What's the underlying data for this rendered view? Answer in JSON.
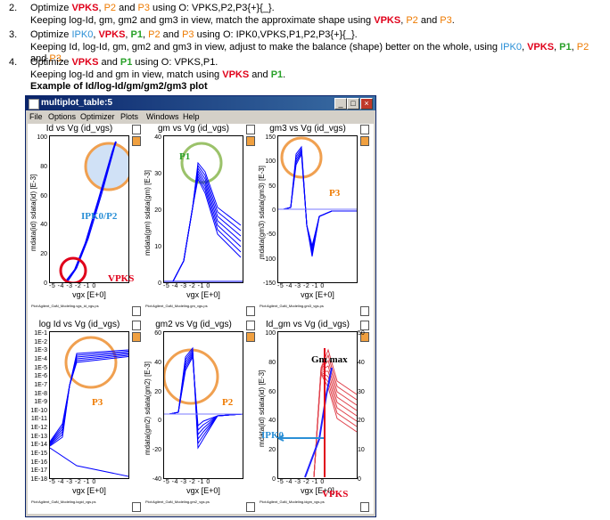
{
  "steps": [
    {
      "num": "2.",
      "line1": [
        [
          "Optimize ",
          ""
        ],
        [
          "VPKS",
          "vpks"
        ],
        [
          ", ",
          ""
        ],
        [
          "P2",
          "p2"
        ],
        [
          " and ",
          ""
        ],
        [
          "P3",
          "p3"
        ],
        [
          " using O: VPKS,P2,P3{+}{_}.",
          ""
        ]
      ],
      "line2": [
        [
          "Keeping log-Id, gm, gm2 and gm3 in view, match the approximate shape using ",
          ""
        ],
        [
          "VPKS",
          "vpks"
        ],
        [
          ", ",
          ""
        ],
        [
          "P2",
          "p2"
        ],
        [
          " and ",
          ""
        ],
        [
          "P3",
          "p3"
        ],
        [
          ".",
          ""
        ]
      ]
    },
    {
      "num": "3.",
      "line1": [
        [
          "Optimize ",
          ""
        ],
        [
          "IPK0",
          "ipk0"
        ],
        [
          ", ",
          ""
        ],
        [
          "VPKS",
          "vpks"
        ],
        [
          ", ",
          ""
        ],
        [
          "P1",
          "p1"
        ],
        [
          ", ",
          ""
        ],
        [
          "P2",
          "p2"
        ],
        [
          " and ",
          ""
        ],
        [
          "P3",
          "p3"
        ],
        [
          " using O: IPK0,VPKS,P1,P2,P3{+}{_}.",
          ""
        ]
      ],
      "line2": [
        [
          "Keeping Id, log-Id, gm, gm2 and gm3 in view, adjust to make the balance (shape) better on the whole, using ",
          ""
        ],
        [
          "IPK0",
          "ipk0"
        ],
        [
          ", ",
          ""
        ],
        [
          "VPKS",
          "vpks"
        ],
        [
          ", ",
          ""
        ],
        [
          "P1",
          "p1"
        ],
        [
          ", ",
          ""
        ],
        [
          "P2",
          "p2"
        ],
        [
          " and ",
          ""
        ],
        [
          "P3",
          "p3"
        ],
        [
          ".",
          ""
        ]
      ]
    },
    {
      "num": "4.",
      "line1": [
        [
          "Optimize ",
          ""
        ],
        [
          "VPKS",
          "vpks"
        ],
        [
          " and ",
          ""
        ],
        [
          "P1",
          "p1"
        ],
        [
          " using O: VPKS,P1.",
          ""
        ]
      ],
      "line2": [
        [
          "Keeping log-Id and gm in view, match using ",
          ""
        ],
        [
          "VPKS",
          "vpks"
        ],
        [
          " and ",
          ""
        ],
        [
          "P1",
          "p1"
        ],
        [
          ".",
          ""
        ]
      ],
      "line3": "Example of Id/log-Id/gm/gm2/gm3 plot"
    }
  ],
  "window": {
    "title": "multiplot_table:5",
    "menu": [
      "File",
      "Options",
      "Optimizer",
      "Plots",
      "Windows",
      "Help"
    ],
    "buttons": {
      "minimize": "_",
      "maximize": "□",
      "close": "×"
    }
  },
  "panels": [
    {
      "title": "Id vs Vg (id_vgs)",
      "ylabel": "mdata(id)  sdata(id) [E-3]",
      "yticks": [
        "100",
        "80",
        "60",
        "40",
        "20",
        "0"
      ],
      "xticks": "-5  -4  -3  -2  -1  0",
      "xlabel": "vgx [E+0]",
      "footer": "Plot:Agilent_GaN_Modeling.vgs_id_vgs.ps"
    },
    {
      "title": "gm vs Vg (id_vgs)",
      "ylabel": "mdata(gm)  sdata(gm) [E-3]",
      "yticks": [
        "40",
        "30",
        "20",
        "10",
        "0"
      ],
      "xticks": "-5  -4  -3  -2  -1  0",
      "xlabel": "vgx [E+0]",
      "footer": "Plot:Agilent_GaN_Modeling.gm_vgs.ps"
    },
    {
      "title": "gm3 vs Vg (id_vgs)",
      "ylabel": "mdata(gm3)  sdata(gm3) [E-3]",
      "yticks": [
        "150",
        "100",
        "50",
        "0",
        "-50",
        "-100",
        "-150"
      ],
      "xticks": "-5  -4  -3  -2  -1  0",
      "xlabel": "vgx [E+0]",
      "footer": "Plot:Agilent_GaN_Modeling.gm3_vgs.ps"
    },
    {
      "title": "log Id vs Vg (id_vgs)",
      "ylabel": "",
      "yticks": [
        "1E-1",
        "1E-2",
        "1E-3",
        "1E-4",
        "1E-5",
        "1E-6",
        "1E-7",
        "1E-8",
        "1E-9",
        "1E-10",
        "1E-11",
        "1E-12",
        "1E-13",
        "1E-14",
        "1E-15",
        "1E-16",
        "1E-17",
        "1E-18"
      ],
      "xticks": "-5  -4  -3  -2  -1  0",
      "xlabel": "vgx [E+0]",
      "footer": "Plot:Agilent_GaN_Modeling.logid_vgs.ps"
    },
    {
      "title": "gm2 vs Vg (id_vgs)",
      "ylabel": "mdata(gm2)  sdata(gm2) [E-3]",
      "yticks": [
        "60",
        "40",
        "20",
        "0",
        "-20",
        "-40"
      ],
      "xticks": "-5  -4  -3  -2  -1  0",
      "xlabel": "vgx [E+0]",
      "footer": "Plot:Agilent_GaN_Modeling.gm2_vgs.ps"
    },
    {
      "title": "Id_gm vs Vg (id_vgs)",
      "ylabel": "mdata(id)  sdata(id) [E-3]",
      "yticks": [
        "100",
        "80",
        "60",
        "40",
        "20",
        "0"
      ],
      "ryticks": [
        "50",
        "40",
        "30",
        "20",
        "10",
        "0"
      ],
      "xticks": "-5  -4  -3  -2  -1  0",
      "xlabel": "vgx [E+0]",
      "footer": "Plot:Agilent_GaN_Modeling.idgm_vgs.ps"
    }
  ],
  "annotations": {
    "ipk0_p2": "IPK0/P2",
    "vpks_a": "VPKS",
    "p1": "P1",
    "p3_a": "P3",
    "p3_b": "P3",
    "p2": "P2",
    "gmmax": "Gm max",
    "ipk0": "IPK0",
    "vpks_b": "VPKS"
  },
  "colors": {
    "vpks": "#e0001a",
    "p1": "#28a028",
    "p2": "#ee7a00",
    "ipk0": "#2a8fd6",
    "curve": "#0000ff",
    "circle_orange": "#f0a050",
    "circle_green": "#9bc26a",
    "circle_red": "#e0001a"
  }
}
